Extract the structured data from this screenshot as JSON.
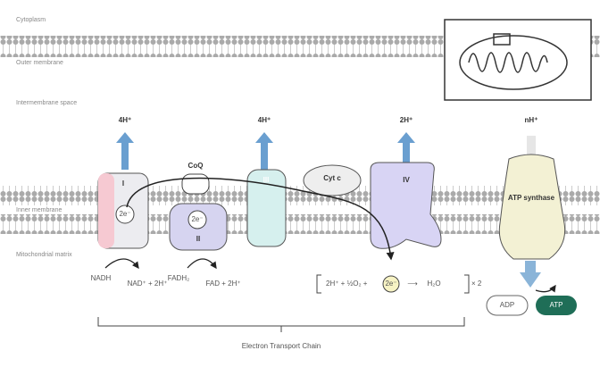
{
  "regions": {
    "cytoplasm": "Cytoplasm",
    "outer": "Outer membrane",
    "intermembrane": "Intermembrane space",
    "inner": "Inner membrane",
    "matrix": "Mitochondrial matrix"
  },
  "protons": [
    "4H⁺",
    "4H⁺",
    "2H⁺",
    "nH⁺"
  ],
  "complexes": {
    "one": "I",
    "one_e": "2e⁻",
    "coq": "CoQ",
    "two": "II",
    "two_e": "2e⁻",
    "three": "III",
    "cytc": "Cyt c",
    "four": "IV",
    "atp_synthase": "ATP synthase"
  },
  "substrates": {
    "nadh": "NADH",
    "nad": "NAD⁺ + 2H⁺",
    "fadh2": "FADH₂",
    "fad": "FAD + 2H⁺"
  },
  "reaction": {
    "left": "2H⁺ + ½O₂ +",
    "electrons": "2e⁻",
    "arrow": "⟶",
    "product": "H₂O",
    "times": "× 2"
  },
  "atp": {
    "adp": "ADP",
    "atp": "ATP"
  },
  "footer": "Electron Transport Chain"
}
